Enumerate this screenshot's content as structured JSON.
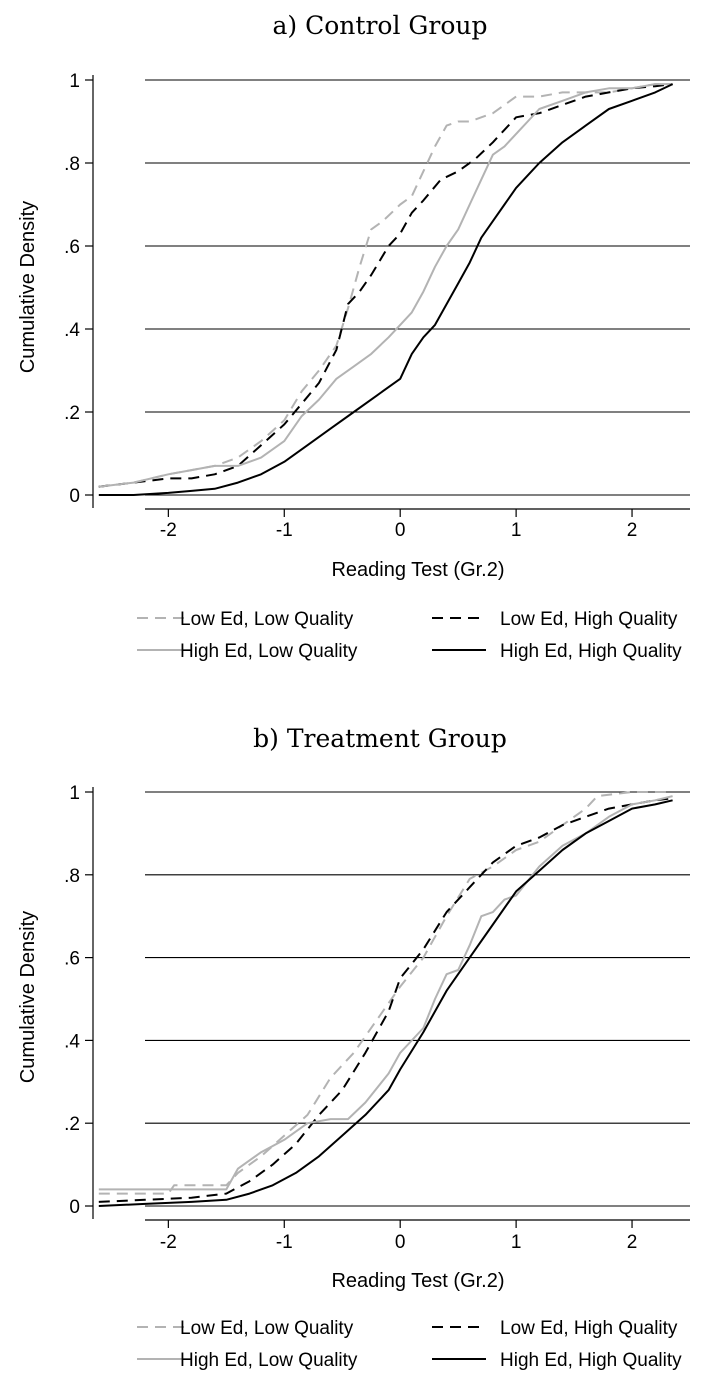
{
  "colors": {
    "dark": "#000000",
    "light": "#b3b3b3",
    "gridline": "#000000"
  },
  "legend": [
    {
      "label": "Low Ed, Low Quality",
      "color": "#b3b3b3",
      "dash": "dashed"
    },
    {
      "label": "Low Ed, High Quality",
      "color": "#000000",
      "dash": "dashed"
    },
    {
      "label": "High Ed, Low Quality",
      "color": "#b3b3b3",
      "dash": "solid"
    },
    {
      "label": "High Ed, High Quality",
      "color": "#000000",
      "dash": "solid"
    }
  ],
  "chart_data": [
    {
      "type": "line",
      "title": "a) Control Group",
      "xlabel": "Reading Test (Gr.2)",
      "ylabel": "Cumulative Density",
      "xlim": [
        -2.65,
        2.5
      ],
      "ylim": [
        0,
        1
      ],
      "x_ticks": [
        -2,
        -1,
        0,
        1,
        2
      ],
      "x_tick_labels": [
        "-2",
        "-1",
        "0",
        "1",
        "2"
      ],
      "y_ticks": [
        0,
        0.2,
        0.4,
        0.6,
        0.8,
        1
      ],
      "y_tick_labels": [
        "0",
        ".2",
        ".4",
        ".6",
        ".8",
        "1"
      ],
      "grid": "horizontal",
      "legend_position": "bottom",
      "series": [
        {
          "name": "Low Ed, Low Quality",
          "x": [
            -2.6,
            -2.3,
            -2.0,
            -1.8,
            -1.6,
            -1.4,
            -1.2,
            -1.0,
            -0.85,
            -0.7,
            -0.55,
            -0.45,
            -0.35,
            -0.25,
            -0.15,
            0.0,
            0.1,
            0.2,
            0.3,
            0.4,
            0.5,
            0.6,
            0.7,
            0.8,
            0.9,
            1.0,
            1.2,
            1.4,
            1.6,
            1.8,
            2.0,
            2.2,
            2.35
          ],
          "y": [
            0.02,
            0.03,
            0.05,
            0.06,
            0.07,
            0.09,
            0.13,
            0.18,
            0.25,
            0.3,
            0.36,
            0.45,
            0.55,
            0.64,
            0.66,
            0.7,
            0.72,
            0.78,
            0.84,
            0.89,
            0.9,
            0.9,
            0.91,
            0.92,
            0.94,
            0.96,
            0.96,
            0.97,
            0.97,
            0.97,
            0.98,
            0.99,
            0.99
          ]
        },
        {
          "name": "Low Ed, High Quality",
          "x": [
            -2.6,
            -2.3,
            -2.0,
            -1.8,
            -1.6,
            -1.4,
            -1.2,
            -1.0,
            -0.85,
            -0.7,
            -0.55,
            -0.45,
            -0.35,
            -0.25,
            -0.1,
            0.0,
            0.1,
            0.2,
            0.35,
            0.5,
            0.65,
            0.8,
            0.9,
            1.0,
            1.2,
            1.4,
            1.6,
            1.8,
            2.0,
            2.2,
            2.35
          ],
          "y": [
            0.02,
            0.03,
            0.04,
            0.04,
            0.05,
            0.07,
            0.12,
            0.17,
            0.22,
            0.27,
            0.35,
            0.46,
            0.49,
            0.53,
            0.6,
            0.63,
            0.68,
            0.71,
            0.76,
            0.78,
            0.81,
            0.85,
            0.88,
            0.91,
            0.92,
            0.94,
            0.96,
            0.97,
            0.98,
            0.985,
            0.99
          ]
        },
        {
          "name": "High Ed, Low Quality",
          "x": [
            -2.6,
            -2.3,
            -2.0,
            -1.8,
            -1.6,
            -1.4,
            -1.2,
            -1.0,
            -0.85,
            -0.7,
            -0.55,
            -0.4,
            -0.25,
            -0.1,
            0.0,
            0.1,
            0.2,
            0.3,
            0.4,
            0.5,
            0.6,
            0.7,
            0.8,
            0.9,
            1.0,
            1.1,
            1.2,
            1.4,
            1.6,
            1.8,
            2.0,
            2.2,
            2.35
          ],
          "y": [
            0.02,
            0.03,
            0.05,
            0.06,
            0.07,
            0.07,
            0.09,
            0.13,
            0.19,
            0.23,
            0.28,
            0.31,
            0.34,
            0.38,
            0.41,
            0.44,
            0.49,
            0.55,
            0.6,
            0.64,
            0.7,
            0.76,
            0.82,
            0.84,
            0.87,
            0.9,
            0.93,
            0.95,
            0.97,
            0.98,
            0.98,
            0.99,
            0.99
          ]
        },
        {
          "name": "High Ed, High Quality",
          "x": [
            -2.6,
            -2.3,
            -2.0,
            -1.8,
            -1.6,
            -1.4,
            -1.3,
            -1.2,
            -1.0,
            -0.8,
            -0.6,
            -0.4,
            -0.2,
            0.0,
            0.1,
            0.2,
            0.3,
            0.4,
            0.5,
            0.6,
            0.7,
            0.8,
            0.9,
            1.0,
            1.1,
            1.2,
            1.4,
            1.6,
            1.8,
            2.0,
            2.2,
            2.35
          ],
          "y": [
            0.0,
            0.0,
            0.005,
            0.01,
            0.015,
            0.03,
            0.04,
            0.05,
            0.08,
            0.12,
            0.16,
            0.2,
            0.24,
            0.28,
            0.34,
            0.38,
            0.41,
            0.46,
            0.51,
            0.56,
            0.62,
            0.66,
            0.7,
            0.74,
            0.77,
            0.8,
            0.85,
            0.89,
            0.93,
            0.95,
            0.97,
            0.99
          ]
        }
      ]
    },
    {
      "type": "line",
      "title": "b) Treatment Group",
      "xlabel": "Reading Test (Gr.2)",
      "ylabel": "Cumulative Density",
      "xlim": [
        -2.65,
        2.5
      ],
      "ylim": [
        0,
        1
      ],
      "x_ticks": [
        -2,
        -1,
        0,
        1,
        2
      ],
      "x_tick_labels": [
        "-2",
        "-1",
        "0",
        "1",
        "2"
      ],
      "y_ticks": [
        0,
        0.2,
        0.4,
        0.6,
        0.8,
        1
      ],
      "y_tick_labels": [
        "0",
        ".2",
        ".4",
        ".6",
        ".8",
        "1"
      ],
      "grid": "horizontal",
      "legend_position": "bottom",
      "series": [
        {
          "name": "Low Ed, Low Quality",
          "x": [
            -2.6,
            -2.0,
            -1.95,
            -1.5,
            -1.4,
            -1.2,
            -1.0,
            -0.8,
            -0.6,
            -0.4,
            -0.2,
            0.0,
            0.2,
            0.4,
            0.6,
            0.8,
            1.0,
            1.2,
            1.4,
            1.6,
            1.7,
            2.0,
            2.2,
            2.35
          ],
          "y": [
            0.03,
            0.03,
            0.05,
            0.05,
            0.08,
            0.12,
            0.17,
            0.22,
            0.31,
            0.37,
            0.45,
            0.53,
            0.6,
            0.7,
            0.79,
            0.82,
            0.86,
            0.88,
            0.92,
            0.96,
            0.99,
            1.0,
            1.0,
            1.0
          ]
        },
        {
          "name": "Low Ed, High Quality",
          "x": [
            -2.6,
            -2.2,
            -1.8,
            -1.5,
            -1.3,
            -1.1,
            -0.9,
            -0.7,
            -0.5,
            -0.3,
            -0.1,
            0.0,
            0.2,
            0.4,
            0.6,
            0.8,
            1.0,
            1.2,
            1.4,
            1.6,
            1.8,
            2.0,
            2.2,
            2.35
          ],
          "y": [
            0.01,
            0.015,
            0.02,
            0.03,
            0.06,
            0.1,
            0.15,
            0.22,
            0.28,
            0.37,
            0.47,
            0.55,
            0.62,
            0.71,
            0.77,
            0.83,
            0.87,
            0.89,
            0.92,
            0.94,
            0.96,
            0.97,
            0.98,
            0.985
          ]
        },
        {
          "name": "High Ed, Low Quality",
          "x": [
            -2.6,
            -2.0,
            -1.5,
            -1.4,
            -1.2,
            -1.0,
            -0.8,
            -0.6,
            -0.45,
            -0.3,
            -0.1,
            0.0,
            0.2,
            0.3,
            0.4,
            0.5,
            0.6,
            0.7,
            0.8,
            0.9,
            1.0,
            1.2,
            1.4,
            1.6,
            1.8,
            2.0,
            2.2,
            2.35
          ],
          "y": [
            0.04,
            0.04,
            0.04,
            0.09,
            0.13,
            0.16,
            0.2,
            0.21,
            0.21,
            0.25,
            0.32,
            0.37,
            0.43,
            0.5,
            0.56,
            0.57,
            0.63,
            0.7,
            0.71,
            0.74,
            0.75,
            0.82,
            0.87,
            0.9,
            0.94,
            0.97,
            0.98,
            0.99
          ]
        },
        {
          "name": "High Ed, High Quality",
          "x": [
            -2.6,
            -2.2,
            -1.8,
            -1.5,
            -1.3,
            -1.1,
            -0.9,
            -0.7,
            -0.5,
            -0.3,
            -0.1,
            0.0,
            0.2,
            0.4,
            0.6,
            0.8,
            1.0,
            1.2,
            1.4,
            1.6,
            1.8,
            2.0,
            2.2,
            2.35
          ],
          "y": [
            0.0,
            0.005,
            0.01,
            0.015,
            0.03,
            0.05,
            0.08,
            0.12,
            0.17,
            0.22,
            0.28,
            0.33,
            0.42,
            0.52,
            0.6,
            0.68,
            0.76,
            0.81,
            0.86,
            0.9,
            0.93,
            0.96,
            0.97,
            0.98
          ]
        }
      ]
    }
  ]
}
